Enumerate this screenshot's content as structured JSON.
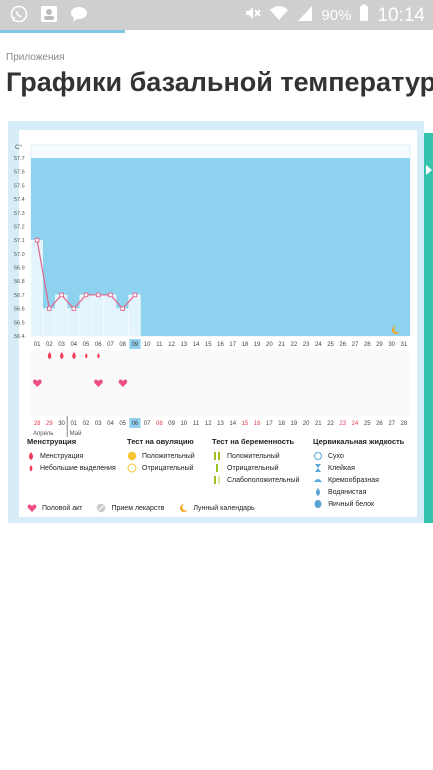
{
  "status_bar": {
    "battery": "90%",
    "time": "10:14",
    "icons": [
      "whatsapp-icon",
      "contacts-icon",
      "message-icon",
      "mute-icon",
      "wifi-icon",
      "signal-icon",
      "battery-icon"
    ]
  },
  "breadcrumb": "Приложения",
  "page_title": "Графики базальной температуры",
  "chart": {
    "unit": "C°",
    "y_ticks": [
      "57.7",
      "57.6",
      "57.5",
      "57.4",
      "57.3",
      "57.2",
      "57.1",
      "57.0",
      "56.9",
      "56.8",
      "56.7",
      "56.6",
      "56.5",
      "56.4"
    ],
    "day_labels": [
      "01",
      "02",
      "03",
      "04",
      "05",
      "06",
      "07",
      "08",
      "09",
      "10",
      "11",
      "12",
      "13",
      "14",
      "15",
      "16",
      "17",
      "18",
      "19",
      "20",
      "21",
      "22",
      "23",
      "24",
      "25",
      "26",
      "27",
      "28",
      "29",
      "30",
      "31"
    ],
    "highlight_day": "09",
    "date_labels": [
      "28",
      "29",
      "30",
      "01",
      "02",
      "03",
      "04",
      "05",
      "06",
      "07",
      "08",
      "09",
      "10",
      "11",
      "12",
      "13",
      "14",
      "15",
      "16",
      "17",
      "18",
      "19",
      "20",
      "21",
      "22",
      "23",
      "24",
      "25",
      "26",
      "27",
      "28"
    ],
    "date_highlight": "06",
    "month_prev": "Апрель",
    "month_next": "Май"
  },
  "chart_data": {
    "type": "line",
    "x": [
      "01",
      "02",
      "03",
      "04",
      "05",
      "06",
      "07",
      "08",
      "09"
    ],
    "values": [
      57.1,
      56.6,
      56.7,
      56.6,
      56.7,
      56.7,
      56.7,
      56.6,
      56.7
    ],
    "ylim": [
      56.4,
      57.7
    ]
  },
  "legend": {
    "menstruation": {
      "header": "Менструация",
      "items": [
        "Менструация",
        "Небольшие выделения"
      ]
    },
    "ovulation": {
      "header": "Тест на овуляцию",
      "items": [
        "Положительный",
        "Отрицательный"
      ]
    },
    "pregnancy": {
      "header": "Тест на беременность",
      "items": [
        "Положительный",
        "Отрицательный",
        "Слабоположительный"
      ]
    },
    "cervical": {
      "header": "Цервикальная жидкость",
      "items": [
        "Сухо",
        "Клейкая",
        "Кремообразная",
        "Водянистая",
        "Яичный белок"
      ]
    },
    "bottom": [
      "Половой акт",
      "Прием лекарств",
      "Лунный календарь"
    ]
  },
  "colors": {
    "sky": "#8dd3ef",
    "line": "#e0648a",
    "heart": "#ec4f86",
    "drop": "#f23b5a",
    "highlight": "#8fd1ee",
    "red_text": "#e03a4d",
    "accent": "#35c3ae"
  }
}
